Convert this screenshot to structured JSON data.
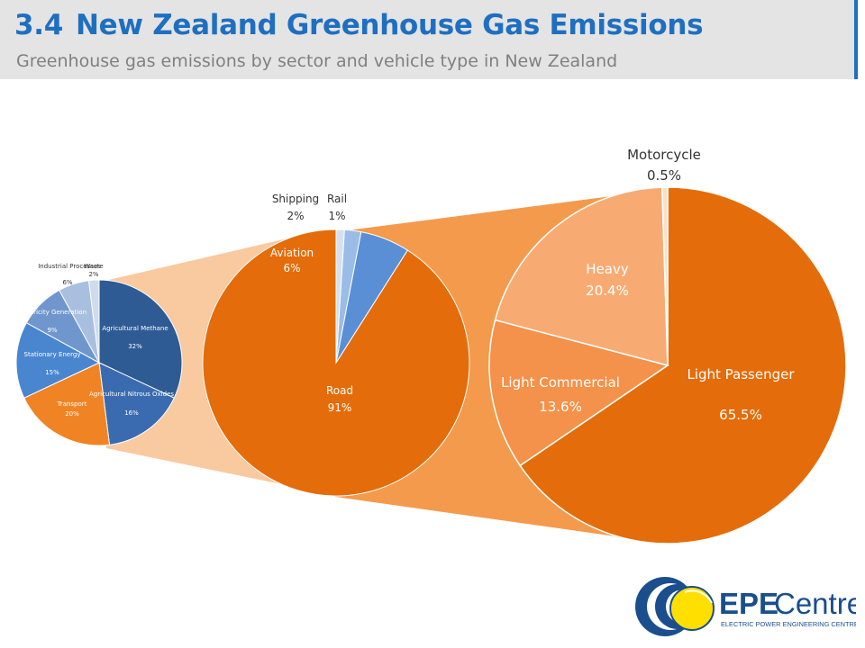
{
  "header": {
    "title_number": "3.4",
    "title": "New Zealand Greenhouse Gas Emissions",
    "subtitle": "Greenhouse gas emissions by sector and vehicle type in New Zealand"
  },
  "colors": {
    "title": "#1f6fc0",
    "header_bg": "#e4e4e4",
    "orange": "#e46c0a",
    "blue_dark": "#2e5b94",
    "blue_mid": "#4a86cf"
  },
  "chart_data": [
    {
      "type": "pie",
      "slices": [
        {
          "name": "Agricultural Methane",
          "value_label": "32%",
          "value": 32
        },
        {
          "name": "Agricultural Nitrous Oxides",
          "value_label": "16%",
          "value": 16
        },
        {
          "name": "Transport",
          "value_label": "20%",
          "value": 20
        },
        {
          "name": "Stationary Energy",
          "value_label": "15%",
          "value": 15
        },
        {
          "name": "Electricity Generation",
          "value_label": "9%",
          "value": 9
        },
        {
          "name": "Industrial Processes",
          "value_label": "6%",
          "value": 6
        },
        {
          "name": "Waste",
          "value_label": "2%",
          "value": 2
        }
      ]
    },
    {
      "type": "pie",
      "slices": [
        {
          "name": "Road",
          "value_label": "91%",
          "value": 91
        },
        {
          "name": "Aviation",
          "value_label": "6%",
          "value": 6
        },
        {
          "name": "Shipping",
          "value_label": "2%",
          "value": 2
        },
        {
          "name": "Rail",
          "value_label": "1%",
          "value": 1
        }
      ]
    },
    {
      "type": "pie",
      "slices": [
        {
          "name": "Light Passenger",
          "value_label": "65.5%",
          "value": 65.5
        },
        {
          "name": "Light Commercial",
          "value_label": "13.6%",
          "value": 13.6
        },
        {
          "name": "Heavy",
          "value_label": "20.4%",
          "value": 20.4
        },
        {
          "name": "Motorcycle",
          "value_label": "0.5%",
          "value": 0.5
        }
      ]
    }
  ],
  "logo": {
    "brand_bold": "EPE",
    "brand_light": "Centre",
    "tagline": "ELECTRIC POWER ENGINEERING CENTRE"
  }
}
